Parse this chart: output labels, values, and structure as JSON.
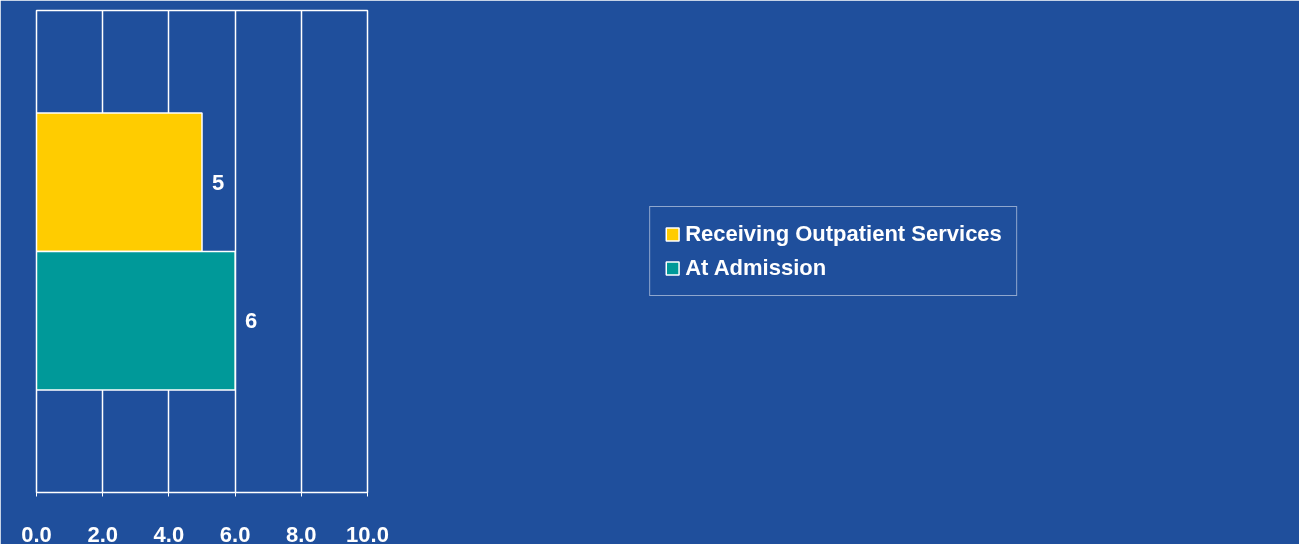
{
  "chart_data": {
    "type": "bar",
    "orientation": "horizontal",
    "categories": [
      null
    ],
    "series": [
      {
        "name": "Receiving Outpatient Services",
        "color": "#ffcc00",
        "values": [
          5
        ]
      },
      {
        "name": "At Admission",
        "color": "#009999",
        "values": [
          6
        ]
      }
    ],
    "xlim": [
      0,
      10
    ],
    "xticks": [
      {
        "value": 0,
        "label": "0.0"
      },
      {
        "value": 2,
        "label": "2.0"
      },
      {
        "value": 4,
        "label": "4.0"
      },
      {
        "value": 6,
        "label": "6.0"
      },
      {
        "value": 8,
        "label": "8.0"
      },
      {
        "value": 10,
        "label": "10.0"
      }
    ],
    "data_labels": true,
    "grid": "x",
    "legend": "right",
    "tick_labels": "x"
  }
}
